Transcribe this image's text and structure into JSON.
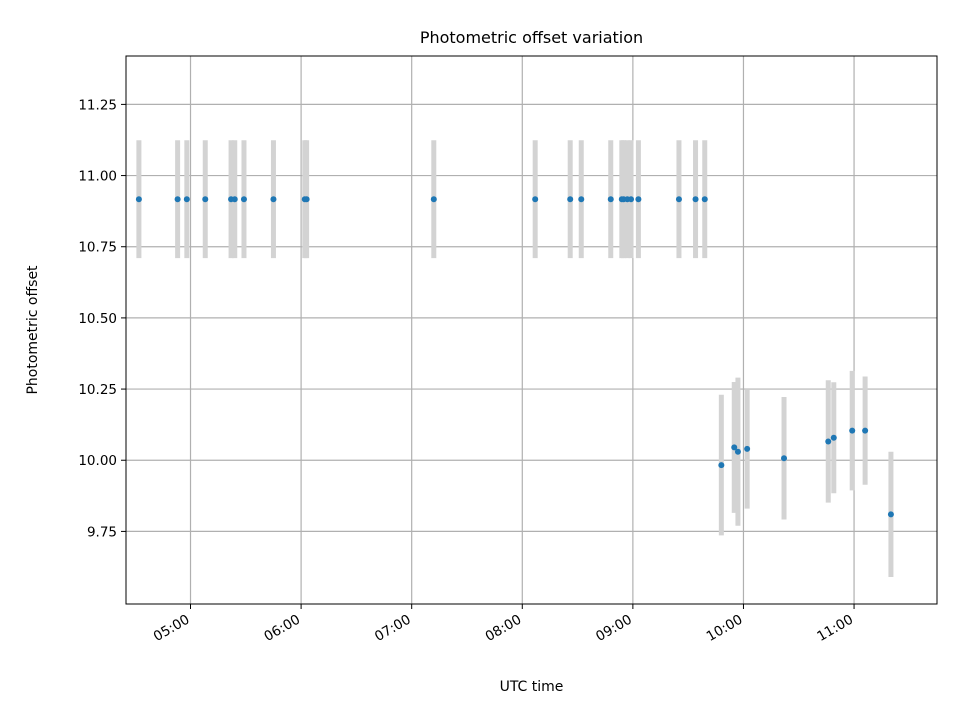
{
  "chart_data": {
    "type": "scatter",
    "title": "Photometric offset variation",
    "xlabel": "UTC time",
    "ylabel": "Photometric offset",
    "x_ticks": [
      "05:00",
      "06:00",
      "07:00",
      "08:00",
      "09:00",
      "10:00",
      "11:00"
    ],
    "y_ticks": [
      "9.75",
      "10.00",
      "10.25",
      "10.50",
      "10.75",
      "11.00",
      "11.25"
    ],
    "xlim": [
      "04:25",
      "11:45"
    ],
    "ylim": [
      9.495,
      11.42
    ],
    "grid": true,
    "marker_color": "#1f77b4",
    "errorbar_color": "#d3d3d3",
    "series": [
      {
        "points": [
          {
            "x": "04:32",
            "y": 10.917,
            "err": 0.207
          },
          {
            "x": "04:53",
            "y": 10.917,
            "err": 0.207
          },
          {
            "x": "04:58",
            "y": 10.917,
            "err": 0.207
          },
          {
            "x": "05:08",
            "y": 10.917,
            "err": 0.207
          },
          {
            "x": "05:22",
            "y": 10.917,
            "err": 0.207
          },
          {
            "x": "05:24",
            "y": 10.917,
            "err": 0.207
          },
          {
            "x": "05:29",
            "y": 10.917,
            "err": 0.207
          },
          {
            "x": "05:45",
            "y": 10.917,
            "err": 0.207
          },
          {
            "x": "06:02",
            "y": 10.917,
            "err": 0.207
          },
          {
            "x": "06:03",
            "y": 10.917,
            "err": 0.207
          },
          {
            "x": "07:12",
            "y": 10.917,
            "err": 0.207
          },
          {
            "x": "08:07",
            "y": 10.917,
            "err": 0.207
          },
          {
            "x": "08:26",
            "y": 10.917,
            "err": 0.207
          },
          {
            "x": "08:32",
            "y": 10.917,
            "err": 0.207
          },
          {
            "x": "08:48",
            "y": 10.917,
            "err": 0.207
          },
          {
            "x": "08:54",
            "y": 10.917,
            "err": 0.207
          },
          {
            "x": "08:55",
            "y": 10.917,
            "err": 0.207
          },
          {
            "x": "08:57",
            "y": 10.917,
            "err": 0.207
          },
          {
            "x": "08:59",
            "y": 10.917,
            "err": 0.207
          },
          {
            "x": "09:03",
            "y": 10.917,
            "err": 0.207
          },
          {
            "x": "09:25",
            "y": 10.917,
            "err": 0.207
          },
          {
            "x": "09:34",
            "y": 10.917,
            "err": 0.207
          },
          {
            "x": "09:39",
            "y": 10.917,
            "err": 0.207
          },
          {
            "x": "09:48",
            "y": 9.983,
            "err": 0.247
          },
          {
            "x": "09:55",
            "y": 10.045,
            "err": 0.23
          },
          {
            "x": "09:57",
            "y": 10.03,
            "err": 0.26
          },
          {
            "x": "10:02",
            "y": 10.04,
            "err": 0.21
          },
          {
            "x": "10:22",
            "y": 10.007,
            "err": 0.215
          },
          {
            "x": "10:46",
            "y": 10.066,
            "err": 0.215
          },
          {
            "x": "10:49",
            "y": 10.079,
            "err": 0.195
          },
          {
            "x": "10:59",
            "y": 10.104,
            "err": 0.21
          },
          {
            "x": "11:06",
            "y": 10.104,
            "err": 0.19
          },
          {
            "x": "11:20",
            "y": 9.81,
            "err": 0.22
          }
        ]
      }
    ]
  }
}
